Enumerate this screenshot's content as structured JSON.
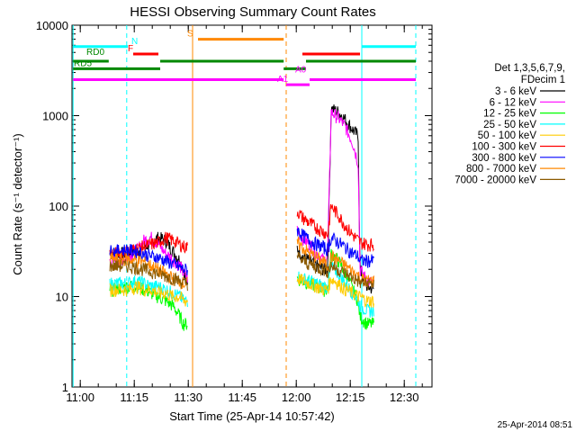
{
  "chart_data": {
    "type": "line",
    "title": "HESSI Observing Summary Count Rates",
    "xlabel": "Start Time (25-Apr-14 10:57:42)",
    "ylabel": "Count Rate (s⁻¹ detector⁻¹)",
    "yscale": "log",
    "ylim": [
      1,
      10000
    ],
    "xlim_minutes_after_start": [
      0,
      100
    ],
    "x_tick_labels": [
      "11:00",
      "11:15",
      "11:30",
      "11:45",
      "12:00",
      "12:15",
      "12:30"
    ],
    "x_tick_minutes": [
      2.3,
      17.3,
      32.3,
      47.3,
      62.3,
      77.3,
      92.3
    ],
    "y_tick_labels": [
      "1",
      "10",
      "100",
      "1000",
      "10000"
    ],
    "y_ticks": [
      1,
      10,
      100,
      1000,
      10000
    ],
    "legend_title_lines": [
      "Det 1,3,5,6,7,9,",
      "FDecim 1"
    ],
    "timestamp": "25-Apr-2014 08:51",
    "series": [
      {
        "name": "3 - 6 keV",
        "color": "#000000",
        "x": [
          10.5,
          12,
          15,
          18,
          20,
          22,
          24,
          26,
          28,
          30,
          31,
          32.2,
          62.5,
          64,
          66,
          68,
          70,
          71,
          72,
          74,
          76,
          78,
          79.5,
          80,
          82,
          84
        ],
        "y": [
          30,
          30,
          30,
          32,
          35,
          40,
          45,
          42,
          32,
          25,
          20,
          12,
          35,
          28,
          25,
          22,
          20,
          20,
          1200,
          1100,
          900,
          700,
          600,
          20,
          13,
          12
        ]
      },
      {
        "name": "6 - 12 keV",
        "color": "#ff00ff",
        "x": [
          10.5,
          12,
          15,
          18,
          20,
          22,
          24,
          26,
          28,
          30,
          31,
          32.2,
          62.5,
          64,
          66,
          68,
          70,
          71,
          72,
          74,
          76,
          78,
          79.5,
          80,
          82,
          84
        ],
        "y": [
          25,
          25,
          27,
          32,
          42,
          45,
          38,
          30,
          26,
          22,
          18,
          16,
          55,
          45,
          38,
          30,
          25,
          28,
          1100,
          950,
          750,
          500,
          300,
          20,
          15,
          14
        ]
      },
      {
        "name": "12 - 25 keV",
        "color": "#00ff00",
        "x": [
          10.5,
          12,
          15,
          18,
          20,
          22,
          24,
          26,
          28,
          30,
          31,
          32.2,
          62.5,
          64,
          66,
          68,
          70,
          71,
          72,
          74,
          76,
          78,
          79.5,
          80,
          82,
          84
        ],
        "y": [
          12,
          12,
          13,
          13,
          12,
          11,
          10,
          9,
          8,
          6,
          5,
          5,
          16,
          15,
          14,
          13,
          12,
          12,
          30,
          25,
          18,
          12,
          9,
          6,
          5,
          5
        ]
      },
      {
        "name": "25 - 50 keV",
        "color": "#00ffff",
        "x": [
          10.5,
          12,
          15,
          18,
          20,
          22,
          24,
          26,
          28,
          30,
          31,
          32.2,
          62.5,
          64,
          66,
          68,
          70,
          71,
          72,
          74,
          76,
          78,
          79.5,
          80,
          82,
          84
        ],
        "y": [
          14,
          14,
          14,
          15,
          14,
          13,
          13,
          12,
          11,
          10,
          9,
          9,
          17,
          16,
          15,
          14,
          13,
          13,
          22,
          18,
          14,
          11,
          9,
          8,
          7,
          7
        ]
      },
      {
        "name": "50 - 100 keV",
        "color": "#ffcc00",
        "x": [
          10.5,
          12,
          15,
          18,
          20,
          22,
          24,
          26,
          28,
          30,
          31,
          32.2,
          62.5,
          64,
          66,
          68,
          70,
          71,
          72,
          74,
          76,
          78,
          79.5,
          80,
          82,
          84
        ],
        "y": [
          12,
          12,
          12,
          13,
          12,
          12,
          11,
          11,
          10,
          10,
          9,
          9,
          16,
          15,
          14,
          13,
          12,
          12,
          16,
          14,
          12,
          11,
          10,
          10,
          9,
          9
        ]
      },
      {
        "name": "100 - 300 keV",
        "color": "#ff0000",
        "x": [
          10.5,
          12,
          15,
          18,
          20,
          22,
          24,
          26,
          28,
          30,
          31,
          32.2,
          62.5,
          64,
          66,
          68,
          70,
          71,
          72,
          74,
          76,
          78,
          79.5,
          80,
          82,
          84
        ],
        "y": [
          30,
          30,
          32,
          34,
          36,
          38,
          40,
          45,
          42,
          38,
          36,
          35,
          90,
          75,
          65,
          58,
          52,
          48,
          100,
          80,
          60,
          48,
          42,
          40,
          38,
          38
        ]
      },
      {
        "name": "300 - 800 keV",
        "color": "#0000ff",
        "x": [
          10.5,
          12,
          15,
          18,
          20,
          22,
          24,
          26,
          28,
          30,
          31,
          32.2,
          62.5,
          64,
          66,
          68,
          70,
          71,
          72,
          74,
          76,
          78,
          79.5,
          80,
          82,
          84
        ],
        "y": [
          32,
          32,
          33,
          32,
          30,
          28,
          27,
          25,
          23,
          21,
          20,
          20,
          55,
          48,
          42,
          38,
          35,
          33,
          45,
          40,
          35,
          30,
          28,
          25,
          25,
          25
        ]
      },
      {
        "name": "800 - 7000 keV",
        "color": "#ff8800",
        "x": [
          10.5,
          12,
          15,
          18,
          20,
          22,
          24,
          26,
          28,
          30,
          31,
          32.2,
          62.5,
          64,
          66,
          68,
          70,
          71,
          72,
          74,
          76,
          78,
          79.5,
          80,
          82,
          84
        ],
        "y": [
          26,
          26,
          26,
          25,
          24,
          22,
          20,
          18,
          16,
          15,
          14,
          14,
          40,
          35,
          30,
          27,
          24,
          22,
          28,
          25,
          22,
          19,
          17,
          16,
          15,
          15
        ]
      },
      {
        "name": "7000 - 20000 keV",
        "color": "#8b5a00",
        "x": [
          10.5,
          12,
          15,
          18,
          20,
          22,
          24,
          26,
          28,
          30,
          31,
          32.2,
          62.5,
          64,
          66,
          68,
          70,
          71,
          72,
          74,
          76,
          78,
          79.5,
          80,
          82,
          84
        ],
        "y": [
          22,
          22,
          22,
          21,
          20,
          19,
          18,
          17,
          16,
          15,
          14,
          14,
          28,
          25,
          23,
          21,
          20,
          19,
          22,
          20,
          18,
          16,
          15,
          14,
          14,
          14
        ]
      }
    ],
    "flag_segments": [
      {
        "label": "N",
        "color": "#00ffff",
        "y": 5800,
        "segments": [
          [
            0.3,
            15.5
          ],
          [
            80.5,
            95.5
          ]
        ],
        "label_at": 16.5,
        "label_y": 5800
      },
      {
        "label": "S",
        "color": "#ff8800",
        "y": 7000,
        "segments": [
          [
            35,
            58.8
          ]
        ],
        "label_at": 32,
        "label_y": 7000
      },
      {
        "label": "F",
        "color": "#ff0000",
        "y": 4800,
        "segments": [
          [
            17,
            24
          ],
          [
            64,
            80
          ]
        ],
        "label_at": 15.5,
        "label_y": 4800
      },
      {
        "label": "RD0",
        "color": "#008800",
        "y": 4000,
        "segments": [
          [
            0.3,
            10.2
          ],
          [
            24.5,
            58.8
          ],
          [
            65,
            95.5
          ]
        ],
        "label_at": 4,
        "label_y": 4400
      },
      {
        "label": "RD5",
        "color": "#008800",
        "y": 3300,
        "segments": [
          [
            0.3,
            24.5
          ],
          [
            58.8,
            65
          ]
        ],
        "label_at": 0.5,
        "label_y": 3300
      },
      {
        "label": "A0",
        "color": "#ff00ff",
        "y": 2500,
        "segments": [
          [
            0.3,
            58.8
          ],
          [
            66,
            95.5
          ]
        ],
        "label_at": 62,
        "label_y": 2800
      },
      {
        "label": "A1",
        "color": "#ff00ff",
        "y": 2200,
        "segments": [
          [
            59.5,
            66
          ]
        ],
        "label_at": 57,
        "label_y": 2200
      }
    ],
    "vertical_markers": [
      {
        "x": 0.3,
        "color": "#00ffff",
        "style": "solid"
      },
      {
        "x": 15.2,
        "color": "#00ffff",
        "style": "dashed"
      },
      {
        "x": 33.5,
        "color": "#ff8800",
        "style": "solid"
      },
      {
        "x": 59.5,
        "color": "#ff8800",
        "style": "dashed"
      },
      {
        "x": 80.5,
        "color": "#00ffff",
        "style": "solid"
      },
      {
        "x": 95.5,
        "color": "#00ffff",
        "style": "dashed"
      }
    ]
  }
}
